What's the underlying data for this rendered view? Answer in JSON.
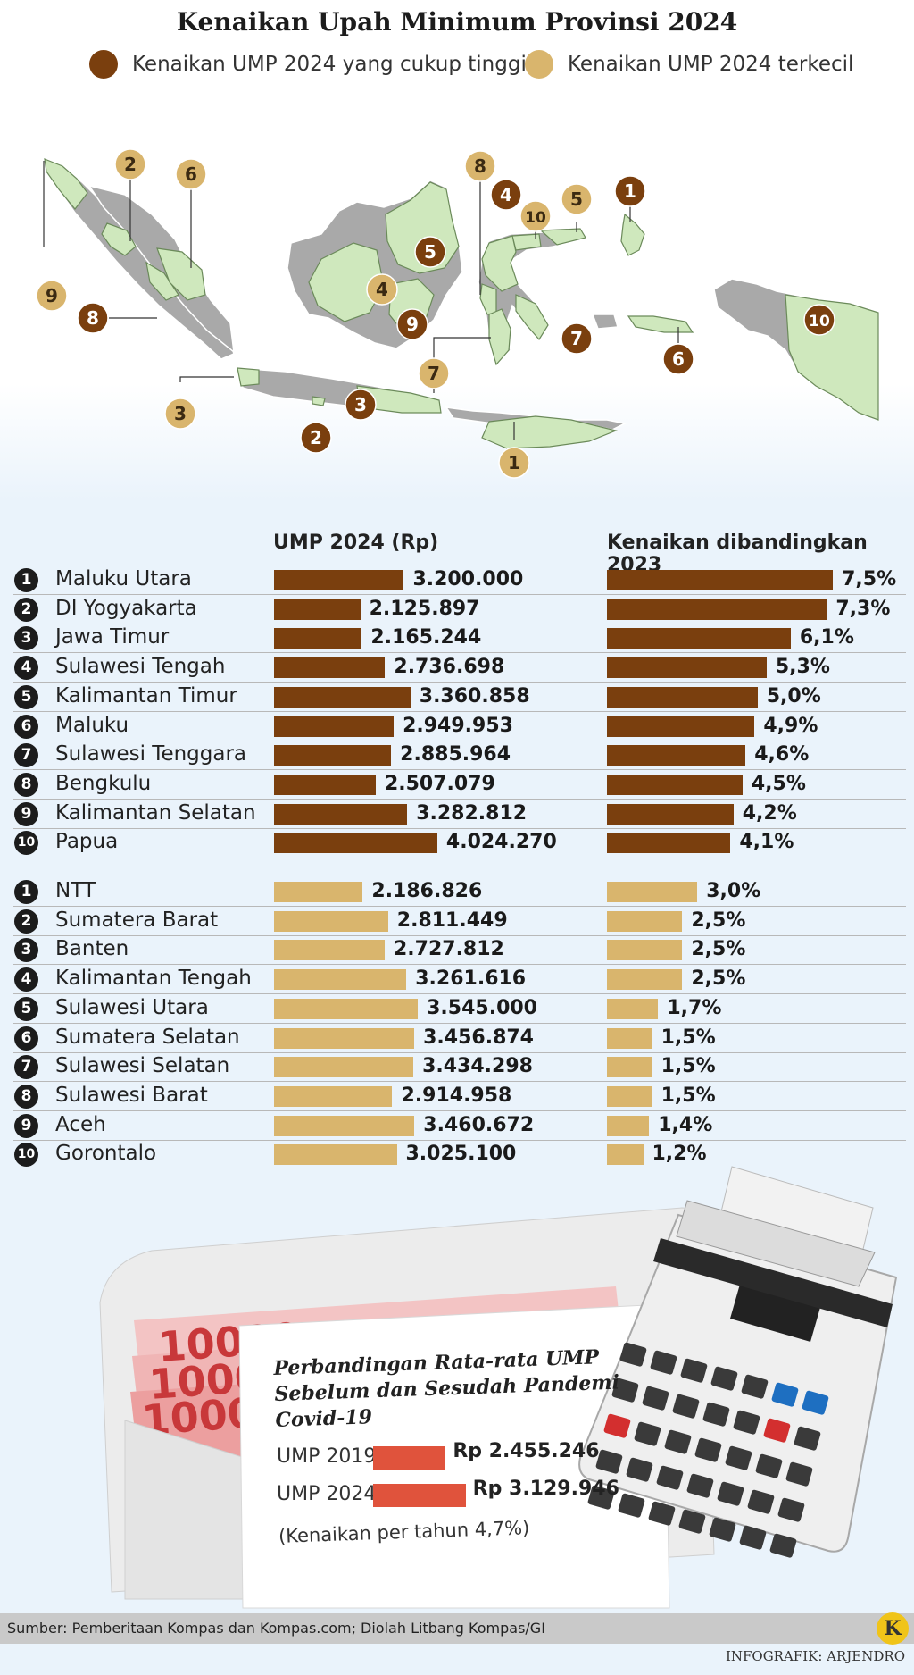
{
  "title": "Kenaikan Upah Minimum Provinsi 2024",
  "legend": {
    "high": {
      "label": "Kenaikan UMP 2024 yang cukup tinggi",
      "color": "#7a3f0e"
    },
    "low": {
      "label": "Kenaikan UMP 2024 terkecil",
      "color": "#d9b56d"
    }
  },
  "map": {
    "land_color": "#a9a9a9",
    "highlight_color": "#cfe8bd",
    "markers": [
      {
        "group": "high",
        "num": "1",
        "region": "Maluku Utara"
      },
      {
        "group": "high",
        "num": "2",
        "region": "DI Yogyakarta"
      },
      {
        "group": "high",
        "num": "3",
        "region": "Jawa Timur"
      },
      {
        "group": "high",
        "num": "4",
        "region": "Sulawesi Tengah"
      },
      {
        "group": "high",
        "num": "5",
        "region": "Kalimantan Timur"
      },
      {
        "group": "high",
        "num": "6",
        "region": "Maluku"
      },
      {
        "group": "high",
        "num": "7",
        "region": "Sulawesi Tenggara"
      },
      {
        "group": "high",
        "num": "8",
        "region": "Bengkulu"
      },
      {
        "group": "high",
        "num": "9",
        "region": "Kalimantan Selatan"
      },
      {
        "group": "high",
        "num": "10",
        "region": "Papua"
      },
      {
        "group": "low",
        "num": "1",
        "region": "NTT"
      },
      {
        "group": "low",
        "num": "2",
        "region": "Sumatera Barat"
      },
      {
        "group": "low",
        "num": "3",
        "region": "Banten"
      },
      {
        "group": "low",
        "num": "4",
        "region": "Kalimantan Tengah"
      },
      {
        "group": "low",
        "num": "5",
        "region": "Sulawesi Utara"
      },
      {
        "group": "low",
        "num": "6",
        "region": "Sumatera Selatan"
      },
      {
        "group": "low",
        "num": "7",
        "region": "Sulawesi Selatan"
      },
      {
        "group": "low",
        "num": "8",
        "region": "Sulawesi Barat"
      },
      {
        "group": "low",
        "num": "9",
        "region": "Aceh"
      },
      {
        "group": "low",
        "num": "10",
        "region": "Gorontalo"
      }
    ]
  },
  "chart_data": {
    "type": "bar",
    "orientation": "horizontal",
    "headers": {
      "ump": "UMP 2024 (Rp)",
      "increase": "Kenaikan dibandingkan 2023"
    },
    "groups": [
      {
        "key": "high",
        "rows": [
          {
            "rank": "1",
            "province": "Maluku Utara",
            "ump": 3200000,
            "ump_label": "3.200.000",
            "increase": 7.5,
            "increase_label": "7,5%"
          },
          {
            "rank": "2",
            "province": "DI Yogyakarta",
            "ump": 2125897,
            "ump_label": "2.125.897",
            "increase": 7.3,
            "increase_label": "7,3%"
          },
          {
            "rank": "3",
            "province": "Jawa Timur",
            "ump": 2165244,
            "ump_label": "2.165.244",
            "increase": 6.1,
            "increase_label": "6,1%"
          },
          {
            "rank": "4",
            "province": "Sulawesi Tengah",
            "ump": 2736698,
            "ump_label": "2.736.698",
            "increase": 5.3,
            "increase_label": "5,3%"
          },
          {
            "rank": "5",
            "province": "Kalimantan Timur",
            "ump": 3360858,
            "ump_label": "3.360.858",
            "increase": 5.0,
            "increase_label": "5,0%"
          },
          {
            "rank": "6",
            "province": "Maluku",
            "ump": 2949953,
            "ump_label": "2.949.953",
            "increase": 4.9,
            "increase_label": "4,9%"
          },
          {
            "rank": "7",
            "province": "Sulawesi Tenggara",
            "ump": 2885964,
            "ump_label": "2.885.964",
            "increase": 4.6,
            "increase_label": "4,6%"
          },
          {
            "rank": "8",
            "province": "Bengkulu",
            "ump": 2507079,
            "ump_label": "2.507.079",
            "increase": 4.5,
            "increase_label": "4,5%"
          },
          {
            "rank": "9",
            "province": "Kalimantan Selatan",
            "ump": 3282812,
            "ump_label": "3.282.812",
            "increase": 4.2,
            "increase_label": "4,2%"
          },
          {
            "rank": "10",
            "province": "Papua",
            "ump": 4024270,
            "ump_label": "4.024.270",
            "increase": 4.1,
            "increase_label": "4,1%"
          }
        ]
      },
      {
        "key": "low",
        "rows": [
          {
            "rank": "1",
            "province": "NTT",
            "ump": 2186826,
            "ump_label": "2.186.826",
            "increase": 3.0,
            "increase_label": "3,0%"
          },
          {
            "rank": "2",
            "province": "Sumatera Barat",
            "ump": 2811449,
            "ump_label": "2.811.449",
            "increase": 2.5,
            "increase_label": "2,5%"
          },
          {
            "rank": "3",
            "province": "Banten",
            "ump": 2727812,
            "ump_label": "2.727.812",
            "increase": 2.5,
            "increase_label": "2,5%"
          },
          {
            "rank": "4",
            "province": "Kalimantan Tengah",
            "ump": 3261616,
            "ump_label": "3.261.616",
            "increase": 2.5,
            "increase_label": "2,5%"
          },
          {
            "rank": "5",
            "province": "Sulawesi Utara",
            "ump": 3545000,
            "ump_label": "3.545.000",
            "increase": 1.7,
            "increase_label": "1,7%"
          },
          {
            "rank": "6",
            "province": "Sumatera Selatan",
            "ump": 3456874,
            "ump_label": "3.456.874",
            "increase": 1.5,
            "increase_label": "1,5%"
          },
          {
            "rank": "7",
            "province": "Sulawesi Selatan",
            "ump": 3434298,
            "ump_label": "3.434.298",
            "increase": 1.5,
            "increase_label": "1,5%"
          },
          {
            "rank": "8",
            "province": "Sulawesi Barat",
            "ump": 2914958,
            "ump_label": "2.914.958",
            "increase": 1.5,
            "increase_label": "1,5%"
          },
          {
            "rank": "9",
            "province": "Aceh",
            "ump": 3460672,
            "ump_label": "3.460.672",
            "increase": 1.4,
            "increase_label": "1,4%"
          },
          {
            "rank": "10",
            "province": "Gorontalo",
            "ump": 3025100,
            "ump_label": "3.025.100",
            "increase": 1.2,
            "increase_label": "1,2%"
          }
        ]
      }
    ]
  },
  "comparison": {
    "title": "Perbandingan Rata-rata UMP Sebelum dan Sesudah Pandemi Covid-19",
    "rows": [
      {
        "label": "UMP 2019",
        "value": 2455246,
        "value_label": "Rp 2.455.246"
      },
      {
        "label": "UMP 2024",
        "value": 3129946,
        "value_label": "Rp 3.129.946"
      }
    ],
    "note": "(Kenaikan per tahun 4,7%)",
    "bar_color": "#e0533c"
  },
  "banknote_text": "10000",
  "logo": "K",
  "source": "Sumber: Pemberitaan Kompas dan Kompas.com; Diolah Litbang Kompas/GI",
  "credit": "INFOGRAFIK: ARJENDRO"
}
